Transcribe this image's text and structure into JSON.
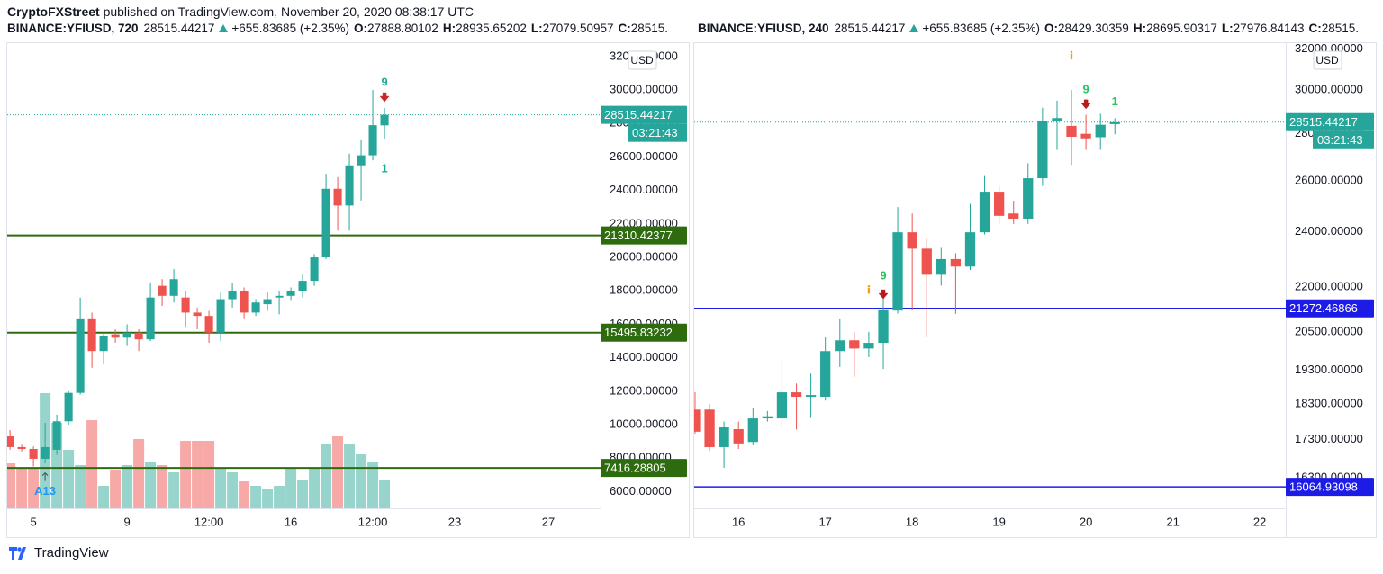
{
  "header": {
    "author": "CryptoFXStreet",
    "published": "published on TradingView.com, November 20, 2020 08:38:17 UTC"
  },
  "footer": {
    "brand": "TradingView"
  },
  "chart_data": [
    {
      "type": "candlestick",
      "legend": {
        "symbol": "BINANCE:YFIUSD, 720",
        "last": "28515.44217",
        "change": "+655.83685 (+2.35%)",
        "fields": [
          {
            "label": "O:",
            "value": "27888.80102"
          },
          {
            "label": "H:",
            "value": "28935.65202"
          },
          {
            "label": "L:",
            "value": "27079.50957"
          },
          {
            "label": "C:",
            "value": "28515."
          }
        ]
      },
      "currency": "USD",
      "up_color": "#26a69a",
      "down_color": "#ef5350",
      "volume_up_color": "#97d4cc",
      "volume_down_color": "#f6a9a7",
      "grid": false,
      "log_scale": false,
      "xlim": [
        3.88,
        29.23
      ],
      "xticks": [
        5,
        9,
        {
          "value": 12.5,
          "label": "12:00"
        },
        16,
        {
          "value": 19.5,
          "label": "12:00"
        },
        23,
        27
      ],
      "ylim": [
        5000,
        32800
      ],
      "yticks": [
        {
          "value": 6000,
          "label": "6000.00000"
        },
        {
          "value": 8000,
          "label": "8000.00000"
        },
        {
          "value": 10000,
          "label": "10000.00000"
        },
        {
          "value": 12000,
          "label": "12000.00000"
        },
        {
          "value": 14000,
          "label": "14000.00000"
        },
        {
          "value": 16000,
          "label": "16000.00000"
        },
        {
          "value": 18000,
          "label": "18000.00000"
        },
        {
          "value": 20000,
          "label": "20000.00000"
        },
        {
          "value": 22000,
          "label": "22000.00000"
        },
        {
          "value": 24000,
          "label": "24000.00000"
        },
        {
          "value": 26000,
          "label": "26000.00000"
        },
        {
          "value": 28000,
          "label": "28000.00000"
        },
        {
          "value": 30000,
          "label": "30000.00000"
        },
        {
          "value": 32000,
          "label": "32000.00000"
        }
      ],
      "x": [
        4,
        4.5,
        5,
        5.5,
        6,
        6.5,
        7,
        7.5,
        8,
        8.5,
        9,
        9.5,
        10,
        10.5,
        11,
        11.5,
        12,
        12.5,
        13,
        13.5,
        14,
        14.5,
        15,
        15.5,
        16,
        16.5,
        17,
        17.5,
        18,
        18.5,
        19,
        19.5,
        20
      ],
      "open": [
        9300,
        8660,
        8550,
        7960,
        8500,
        10200,
        11900,
        16300,
        14400,
        15400,
        15200,
        15500,
        15100,
        18300,
        17700,
        17600,
        16700,
        16500,
        15500,
        17500,
        18000,
        16700,
        17200,
        17600,
        17700,
        18000,
        18600,
        20000,
        24100,
        23100,
        25500,
        26100,
        27888.80102
      ],
      "high": [
        9680,
        8800,
        8700,
        10110,
        10600,
        12000,
        17600,
        16700,
        15500,
        15700,
        16000,
        15700,
        18500,
        18700,
        19300,
        18000,
        17000,
        16800,
        17900,
        18500,
        18200,
        17500,
        17900,
        18000,
        18200,
        19000,
        20200,
        25000,
        24800,
        26200,
        27000,
        30000,
        28935.65202
      ],
      "low": [
        8500,
        8400,
        7500,
        7690,
        8200,
        10000,
        11800,
        13400,
        13600,
        14900,
        14700,
        14400,
        15000,
        17100,
        17300,
        15800,
        15700,
        14900,
        15000,
        17000,
        16300,
        16500,
        16800,
        16600,
        17400,
        17600,
        18300,
        19900,
        21600,
        21600,
        23400,
        25800,
        27079.50957
      ],
      "close": [
        8660,
        8550,
        7960,
        8660,
        10200,
        11900,
        16300,
        14400,
        15300,
        15200,
        15500,
        15100,
        17600,
        17700,
        18700,
        16700,
        16500,
        15500,
        17500,
        18000,
        16700,
        17300,
        17500,
        17700,
        18000,
        18600,
        20000,
        24100,
        23100,
        25500,
        26100,
        27900,
        28515.44217
      ],
      "volume": [
        50,
        45,
        45,
        128,
        95,
        65,
        48,
        98,
        25,
        43,
        48,
        77,
        52,
        48,
        40,
        75,
        75,
        75,
        45,
        40,
        30,
        25,
        22,
        25,
        45,
        32,
        45,
        72,
        80,
        72,
        60,
        52,
        32
      ],
      "levels": [
        {
          "value": 21310.42377,
          "color": "#2e6b0e"
        },
        {
          "value": 15495.83232,
          "color": "#2e6b0e"
        },
        {
          "value": 7416.28805,
          "color": "#2e6b0e"
        }
      ],
      "last_price": 28515.44217,
      "countdown": "03:21:43",
      "annotations": [
        {
          "text": "9",
          "x": 20,
          "y": 30430,
          "color": "#22ab94"
        },
        {
          "text": "1",
          "x": 20,
          "y": 25270,
          "color": "#22ab94"
        },
        {
          "text": "A13",
          "x": 5.5,
          "y": 6000,
          "color": "#2196f3"
        }
      ],
      "markers": [
        {
          "x": 20,
          "y": 29570,
          "shape": "arrow-down",
          "color": "#c62828"
        },
        {
          "x": 5.5,
          "y": 6900,
          "shape": "arrow-up",
          "color": "#4a4a4a"
        }
      ]
    },
    {
      "type": "candlestick",
      "legend": {
        "symbol": "BINANCE:YFIUSD, 240",
        "last": "28515.44217",
        "change": "+655.83685 (+2.35%)",
        "fields": [
          {
            "label": "O:",
            "value": "28429.30359"
          },
          {
            "label": "H:",
            "value": "28695.90317"
          },
          {
            "label": "L:",
            "value": "27976.84143"
          },
          {
            "label": "C:",
            "value": "28515."
          }
        ]
      },
      "currency": "USD",
      "up_color": "#26a69a",
      "down_color": "#ef5350",
      "grid": false,
      "log_scale": true,
      "xlim": [
        15.49,
        22.3
      ],
      "xticks": [
        16,
        17,
        18,
        19,
        20,
        21,
        22
      ],
      "ylim": [
        15530,
        32290
      ],
      "yticks": [
        {
          "value": 16300,
          "label": "16300.00000"
        },
        {
          "value": 17300,
          "label": "17300.00000"
        },
        {
          "value": 18300,
          "label": "18300.00000"
        },
        {
          "value": 19300,
          "label": "19300.00000"
        },
        {
          "value": 20500,
          "label": "20500.00000"
        },
        {
          "value": 22000,
          "label": "22000.00000"
        },
        {
          "value": 24000,
          "label": "24000.00000"
        },
        {
          "value": 26000,
          "label": "26000.00000"
        },
        {
          "value": 28000,
          "label": "28000.00000"
        },
        {
          "value": 30000,
          "label": "30000.00000"
        },
        {
          "value": 32000,
          "label": "32000.00000"
        }
      ],
      "x": [
        15.5,
        15.667,
        15.833,
        16,
        16.167,
        16.333,
        16.5,
        16.667,
        16.833,
        17,
        17.167,
        17.333,
        17.5,
        17.667,
        17.833,
        18,
        18.167,
        18.333,
        18.5,
        18.667,
        18.833,
        19,
        19.167,
        19.333,
        19.5,
        19.667,
        19.833,
        20,
        20.167,
        20.333
      ],
      "open": [
        18140,
        18140,
        17100,
        17590,
        17240,
        17890,
        17890,
        18640,
        18510,
        18510,
        19890,
        20230,
        19970,
        20150,
        21200,
        23980,
        23370,
        22430,
        22990,
        22720,
        23980,
        25560,
        24700,
        24500,
        26110,
        28550,
        28350,
        28000,
        27850,
        28429.30359
      ],
      "high": [
        18640,
        18300,
        17800,
        17800,
        18200,
        18100,
        19620,
        18900,
        19200,
        20320,
        20910,
        20500,
        20500,
        21740,
        24950,
        24700,
        23740,
        23400,
        23200,
        25080,
        26200,
        25800,
        25200,
        26730,
        29170,
        29500,
        30000,
        28850,
        28900,
        28695.90317
      ],
      "low": [
        17470,
        17000,
        16550,
        17050,
        17150,
        17800,
        17600,
        17580,
        17900,
        18400,
        19400,
        19100,
        19700,
        19340,
        21100,
        21200,
        20320,
        22050,
        21090,
        22600,
        23900,
        24300,
        24300,
        24300,
        25800,
        27300,
        26660,
        27300,
        27300,
        27976.84143
      ],
      "close": [
        17520,
        17100,
        17640,
        17200,
        17890,
        17950,
        18640,
        18510,
        18560,
        19890,
        20230,
        19970,
        20150,
        21210,
        23980,
        23370,
        22430,
        22990,
        22720,
        23980,
        25560,
        24610,
        24500,
        26110,
        28550,
        28700,
        27870,
        27800,
        28400,
        28515.44217
      ],
      "levels": [
        {
          "value": 21272.46866,
          "color": "#1c1ce6"
        },
        {
          "value": 16064.93098,
          "color": "#1c1ce6"
        }
      ],
      "last_price": 28515.44217,
      "countdown": "03:21:43",
      "annotations": [
        {
          "text": "9",
          "x": 17.667,
          "y": 22380,
          "color": "#22c55e"
        },
        {
          "text": "9",
          "x": 20,
          "y": 30000,
          "color": "#22c55e"
        },
        {
          "text": "1",
          "x": 20.333,
          "y": 29420,
          "color": "#22c55e"
        }
      ],
      "markers": [
        {
          "x": 17.667,
          "y": 21750,
          "shape": "arrow-down",
          "color": "#b71c1c"
        },
        {
          "x": 20,
          "y": 29330,
          "shape": "arrow-down",
          "color": "#b71c1c"
        },
        {
          "x": 17.5,
          "y": 21900,
          "shape": "info",
          "color": "#f59e0b"
        },
        {
          "x": 19.833,
          "y": 31660,
          "shape": "info",
          "color": "#f59e0b"
        }
      ]
    }
  ]
}
